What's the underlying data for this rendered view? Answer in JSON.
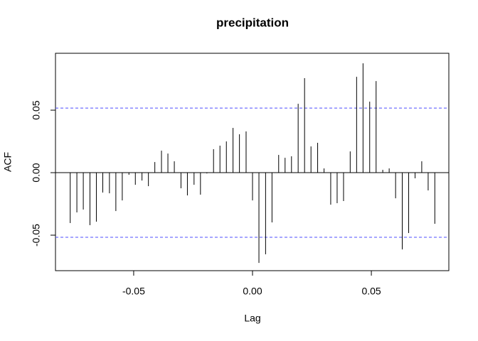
{
  "chart_data": {
    "type": "acf",
    "title": "precipitation",
    "x_label": "Lag",
    "y_label": "ACF",
    "x": [
      -0.0767,
      -0.0739,
      -0.0712,
      -0.0684,
      -0.0657,
      -0.063,
      -0.0602,
      -0.0575,
      -0.0548,
      -0.052,
      -0.0493,
      -0.0465,
      -0.0438,
      -0.0411,
      -0.0383,
      -0.0356,
      -0.0329,
      -0.0301,
      -0.0274,
      -0.0246,
      -0.0219,
      -0.0192,
      -0.0164,
      -0.0137,
      -0.011,
      -0.0082,
      -0.0055,
      -0.0027,
      0,
      0.0027,
      0.0055,
      0.0082,
      0.011,
      0.0137,
      0.0164,
      0.0192,
      0.0219,
      0.0246,
      0.0274,
      0.0301,
      0.0329,
      0.0356,
      0.0383,
      0.0411,
      0.0438,
      0.0465,
      0.0493,
      0.052,
      0.0548,
      0.0575,
      0.0602,
      0.063,
      0.0657,
      0.0684,
      0.0712,
      0.0739,
      0.0767
    ],
    "values": [
      -0.0403,
      -0.0318,
      -0.0295,
      -0.042,
      -0.0392,
      -0.0159,
      -0.0165,
      -0.0307,
      -0.0222,
      -0.0017,
      -0.0097,
      -0.0063,
      -0.0108,
      0.0085,
      0.0176,
      0.0153,
      0.0091,
      -0.0125,
      -0.0182,
      -0.0097,
      -0.0176,
      -0.0006,
      0.0188,
      0.0216,
      0.025,
      0.0358,
      0.0307,
      0.033,
      -0.0222,
      -0.0722,
      -0.0653,
      -0.0398,
      0.0142,
      0.0119,
      0.0131,
      0.0551,
      0.0756,
      0.021,
      0.0239,
      0.0034,
      -0.0256,
      -0.0244,
      -0.0227,
      0.017,
      0.0767,
      0.0875,
      0.0568,
      0.0733,
      0.0023,
      0.0034,
      -0.0205,
      -0.0614,
      -0.0483,
      -0.0045,
      0.0091,
      -0.0142,
      -0.0409
    ],
    "color": "#000000",
    "confidence_lines": [
      -0.0517,
      0.0517
    ],
    "confidence_color": "#4d4dff",
    "xlim": [
      -0.0829,
      0.0826
    ],
    "ylim": [
      -0.0784,
      0.0955
    ],
    "xticks": [
      -0.05,
      {
        "value": 0,
        "label": "0.00"
      },
      0.05
    ],
    "yticks": [
      -0.05,
      {
        "value": 0,
        "label": "0.00"
      },
      0.05
    ]
  }
}
